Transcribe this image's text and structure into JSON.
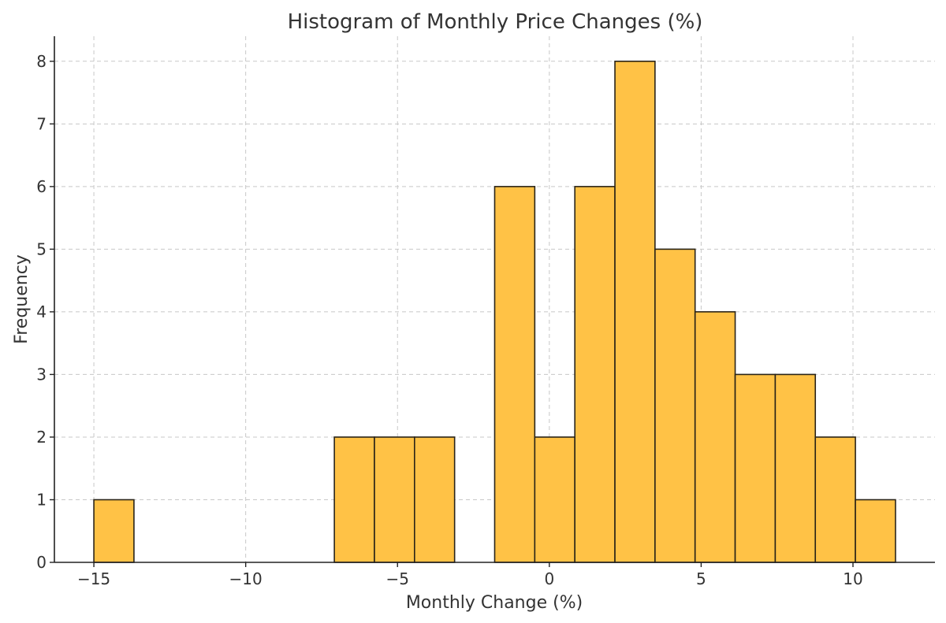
{
  "chart_data": {
    "type": "bar",
    "title": "Histogram of Monthly Price Changes (%)",
    "xlabel": "Monthly Change (%)",
    "ylabel": "Frequency",
    "bin_edges": [
      -15.0,
      -13.68,
      -12.36,
      -11.04,
      -9.72,
      -8.4,
      -7.08,
      -5.76,
      -4.44,
      -3.12,
      -1.8,
      -0.48,
      0.84,
      2.16,
      3.48,
      4.8,
      6.12,
      7.44,
      8.76,
      10.08,
      11.4
    ],
    "values": [
      1,
      0,
      0,
      0,
      0,
      0,
      2,
      2,
      2,
      0,
      6,
      2,
      6,
      8,
      5,
      4,
      3,
      3,
      2,
      1
    ],
    "xlim": [
      -16.3,
      12.7
    ],
    "ylim": [
      0,
      8.4
    ],
    "x_ticks": [
      -15,
      -10,
      -5,
      0,
      5,
      10
    ],
    "x_tick_labels": [
      "−15",
      "−10",
      "−5",
      "0",
      "5",
      "10"
    ],
    "y_ticks": [
      0,
      1,
      2,
      3,
      4,
      5,
      6,
      7,
      8
    ],
    "y_tick_labels": [
      "0",
      "1",
      "2",
      "3",
      "4",
      "5",
      "6",
      "7",
      "8"
    ],
    "grid": true,
    "bar_color": "#ffc246",
    "edge_color": "#2a2418"
  }
}
